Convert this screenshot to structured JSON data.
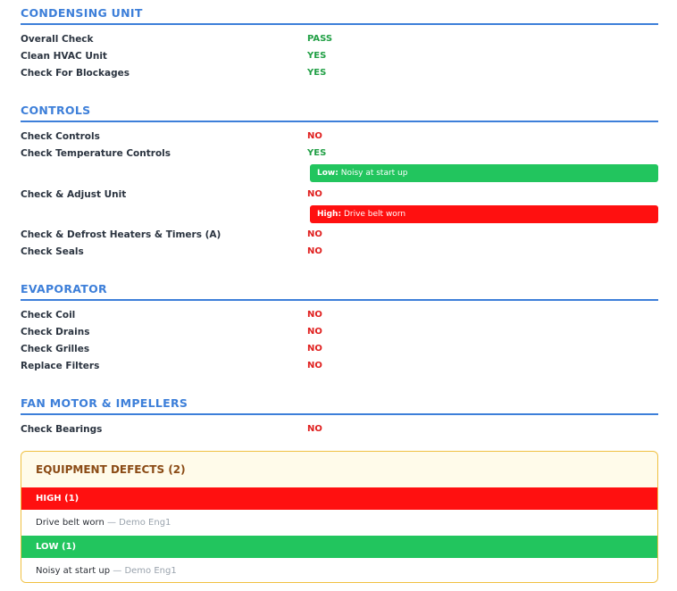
{
  "sections": [
    {
      "title": "CONDENSING UNIT",
      "rows": [
        {
          "label": "Overall Check",
          "value": "PASS"
        },
        {
          "label": "Clean HVAC Unit",
          "value": "YES"
        },
        {
          "label": "Check For Blockages",
          "value": "YES"
        }
      ]
    },
    {
      "title": "CONTROLS",
      "rows": [
        {
          "label": "Check Controls",
          "value": "NO"
        },
        {
          "label": "Check Temperature Controls",
          "value": "YES",
          "note": {
            "level": "Low:",
            "text": "Noisy at start up"
          }
        },
        {
          "label": "Check & Adjust Unit",
          "value": "NO",
          "note": {
            "level": "High:",
            "text": "Drive belt worn"
          }
        },
        {
          "label": "Check & Defrost Heaters & Timers (A)",
          "value": "NO"
        },
        {
          "label": "Check Seals",
          "value": "NO"
        }
      ]
    },
    {
      "title": "EVAPORATOR",
      "rows": [
        {
          "label": "Check Coil",
          "value": "NO"
        },
        {
          "label": "Check Drains",
          "value": "NO"
        },
        {
          "label": "Check Grilles",
          "value": "NO"
        },
        {
          "label": "Replace Filters",
          "value": "NO"
        }
      ]
    },
    {
      "title": "FAN MOTOR & IMPELLERS",
      "rows": [
        {
          "label": "Check Bearings",
          "value": "NO"
        }
      ]
    }
  ],
  "defects": {
    "title": "EQUIPMENT DEFECTS (2)",
    "groups": [
      {
        "label": "HIGH (1)",
        "items": [
          {
            "text": "Drive belt worn",
            "by": "— Demo Eng1"
          }
        ]
      },
      {
        "label": "LOW (1)",
        "items": [
          {
            "text": "Noisy at start up",
            "by": "— Demo Eng1"
          }
        ]
      }
    ]
  },
  "colors": {
    "accent": "#3d7fd9",
    "pass": "#22a046",
    "fail": "#e0201f",
    "high": "#ff1010",
    "low": "#22c55e"
  }
}
